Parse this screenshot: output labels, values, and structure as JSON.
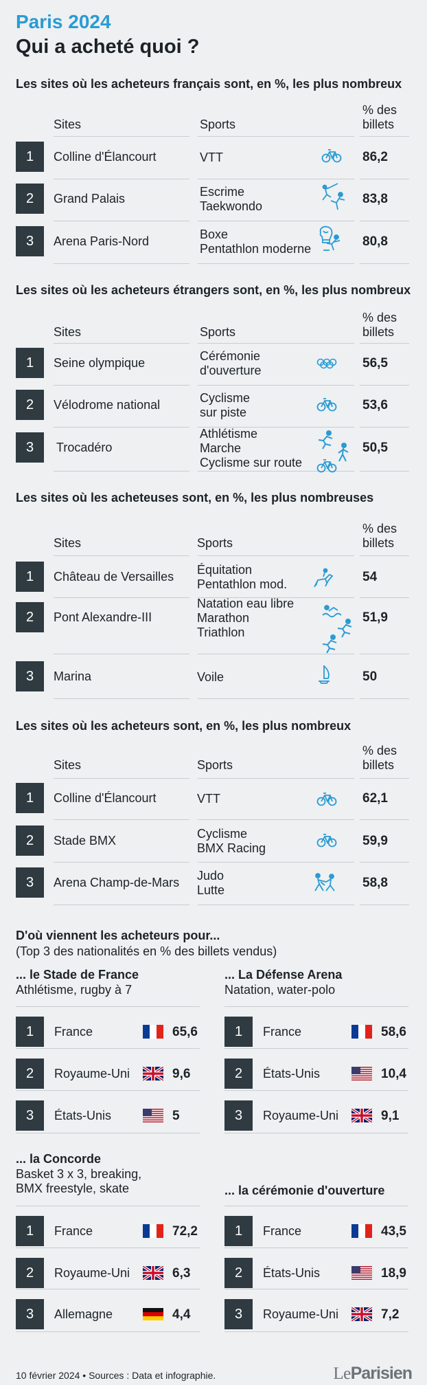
{
  "header": {
    "kicker": "Paris 2024",
    "title": "Qui a acheté quoi ?"
  },
  "columns": {
    "sites": "Sites",
    "sports": "Sports",
    "pct_line1": "% des",
    "pct_line2": "billets"
  },
  "sections": [
    {
      "title": "Les sites où les acheteurs français sont, en %, les plus nombreux",
      "rows": [
        {
          "rank": "1",
          "site": "Colline d'Élancourt",
          "sports": [
            "VTT"
          ],
          "value": "86,2",
          "icons": [
            "bike-icon"
          ]
        },
        {
          "rank": "2",
          "site": "Grand Palais",
          "sports": [
            "Escrime",
            "Taekwondo"
          ],
          "value": "83,8",
          "icons": [
            "fencing-icon",
            "taekwondo-icon"
          ]
        },
        {
          "rank": "3",
          "site": "Arena Paris-Nord",
          "sports": [
            "Boxe",
            "Pentathlon moderne"
          ],
          "value": "80,8",
          "icons": [
            "boxing-glove-icon",
            "pentathlon-icon"
          ]
        }
      ]
    },
    {
      "title": "Les sites où les acheteurs étrangers sont, en %, les plus nombreux",
      "rows": [
        {
          "rank": "1",
          "site": "Seine olympique",
          "sports": [
            "Cérémonie",
            "d'ouverture"
          ],
          "value": "56,5",
          "icons": [
            "olympic-rings-icon"
          ]
        },
        {
          "rank": "2",
          "site": "Vélodrome national",
          "sports": [
            "Cyclisme",
            "sur piste"
          ],
          "value": "53,6",
          "icons": [
            "bike-icon"
          ]
        },
        {
          "rank": "3",
          "site": "Trocadéro",
          "sports": [
            "Athlétisme",
            "Marche",
            "Cyclisme sur route"
          ],
          "value": "50,5",
          "icons": [
            "runner-icon",
            "walker-icon",
            "bike-icon"
          ]
        }
      ]
    },
    {
      "title": "Les sites où les acheteuses sont, en %, les plus nombreuses",
      "rows": [
        {
          "rank": "1",
          "site": "Château de Versailles",
          "sports": [
            "Équitation",
            "Pentathlon mod."
          ],
          "value": "54",
          "icons": [
            "equestrian-icon"
          ]
        },
        {
          "rank": "2",
          "site": "Pont Alexandre-III",
          "sports": [
            "Natation eau libre",
            "Marathon",
            "Triathlon"
          ],
          "value": "51,9",
          "icons": [
            "swimmer-icon",
            "runner-icon",
            "triathlon-icon"
          ]
        },
        {
          "rank": "3",
          "site": "Marina",
          "sports": [
            "Voile"
          ],
          "value": "50",
          "icons": [
            "sailboat-icon"
          ]
        }
      ]
    },
    {
      "title": "Les sites où les acheteurs sont, en %, les plus nombreux",
      "rows": [
        {
          "rank": "1",
          "site": "Colline d'Élancourt",
          "sports": [
            "VTT"
          ],
          "value": "62,1",
          "icons": [
            "bike-icon"
          ]
        },
        {
          "rank": "2",
          "site": "Stade BMX",
          "sports": [
            "Cyclisme",
            "BMX Racing"
          ],
          "value": "59,9",
          "icons": [
            "bike-icon"
          ]
        },
        {
          "rank": "3",
          "site": "Arena Champ-de-Mars",
          "sports": [
            "Judo",
            "Lutte"
          ],
          "value": "58,8",
          "icons": [
            "judo-icon"
          ]
        }
      ]
    }
  ],
  "origins": {
    "title": "D'où viennent les acheteurs pour...",
    "subtitle": "(Top 3 des nationalités en % des billets vendus)",
    "venues": [
      {
        "title": "... le Stade de France",
        "note": [
          "Athlétisme, rugby à 7"
        ],
        "rows": [
          {
            "rank": "1",
            "country": "France",
            "flag": "fr",
            "value": "65,6"
          },
          {
            "rank": "2",
            "country": "Royaume-Uni",
            "flag": "uk",
            "value": "9,6"
          },
          {
            "rank": "3",
            "country": "États-Unis",
            "flag": "us",
            "value": "5"
          }
        ]
      },
      {
        "title": "... La Défense Arena",
        "note": [
          "Natation, water-polo"
        ],
        "rows": [
          {
            "rank": "1",
            "country": "France",
            "flag": "fr",
            "value": "58,6"
          },
          {
            "rank": "2",
            "country": "États-Unis",
            "flag": "us",
            "value": "10,4"
          },
          {
            "rank": "3",
            "country": "Royaume-Uni",
            "flag": "uk",
            "value": "9,1"
          }
        ]
      },
      {
        "title": "... la Concorde",
        "note": [
          "Basket 3 x 3, breaking,",
          "BMX freestyle, skate"
        ],
        "rows": [
          {
            "rank": "1",
            "country": "France",
            "flag": "fr",
            "value": "72,2"
          },
          {
            "rank": "2",
            "country": "Royaume-Uni",
            "flag": "uk",
            "value": "6,3"
          },
          {
            "rank": "3",
            "country": "Allemagne",
            "flag": "de",
            "value": "4,4"
          }
        ]
      },
      {
        "title": "... la cérémonie d'ouverture",
        "note": [],
        "rows": [
          {
            "rank": "1",
            "country": "France",
            "flag": "fr",
            "value": "43,5"
          },
          {
            "rank": "2",
            "country": "États-Unis",
            "flag": "us",
            "value": "18,9"
          },
          {
            "rank": "3",
            "country": "Royaume-Uni",
            "flag": "uk",
            "value": "7,2"
          }
        ]
      }
    ]
  },
  "footer": {
    "source": "10 février 2024 • Sources : Data et infographie.",
    "logo_a": "Le",
    "logo_b": "Parisien"
  },
  "colors": {
    "accent": "#2a9bd3",
    "rank_box": "#2f3a41",
    "background": "#eef0f2"
  }
}
